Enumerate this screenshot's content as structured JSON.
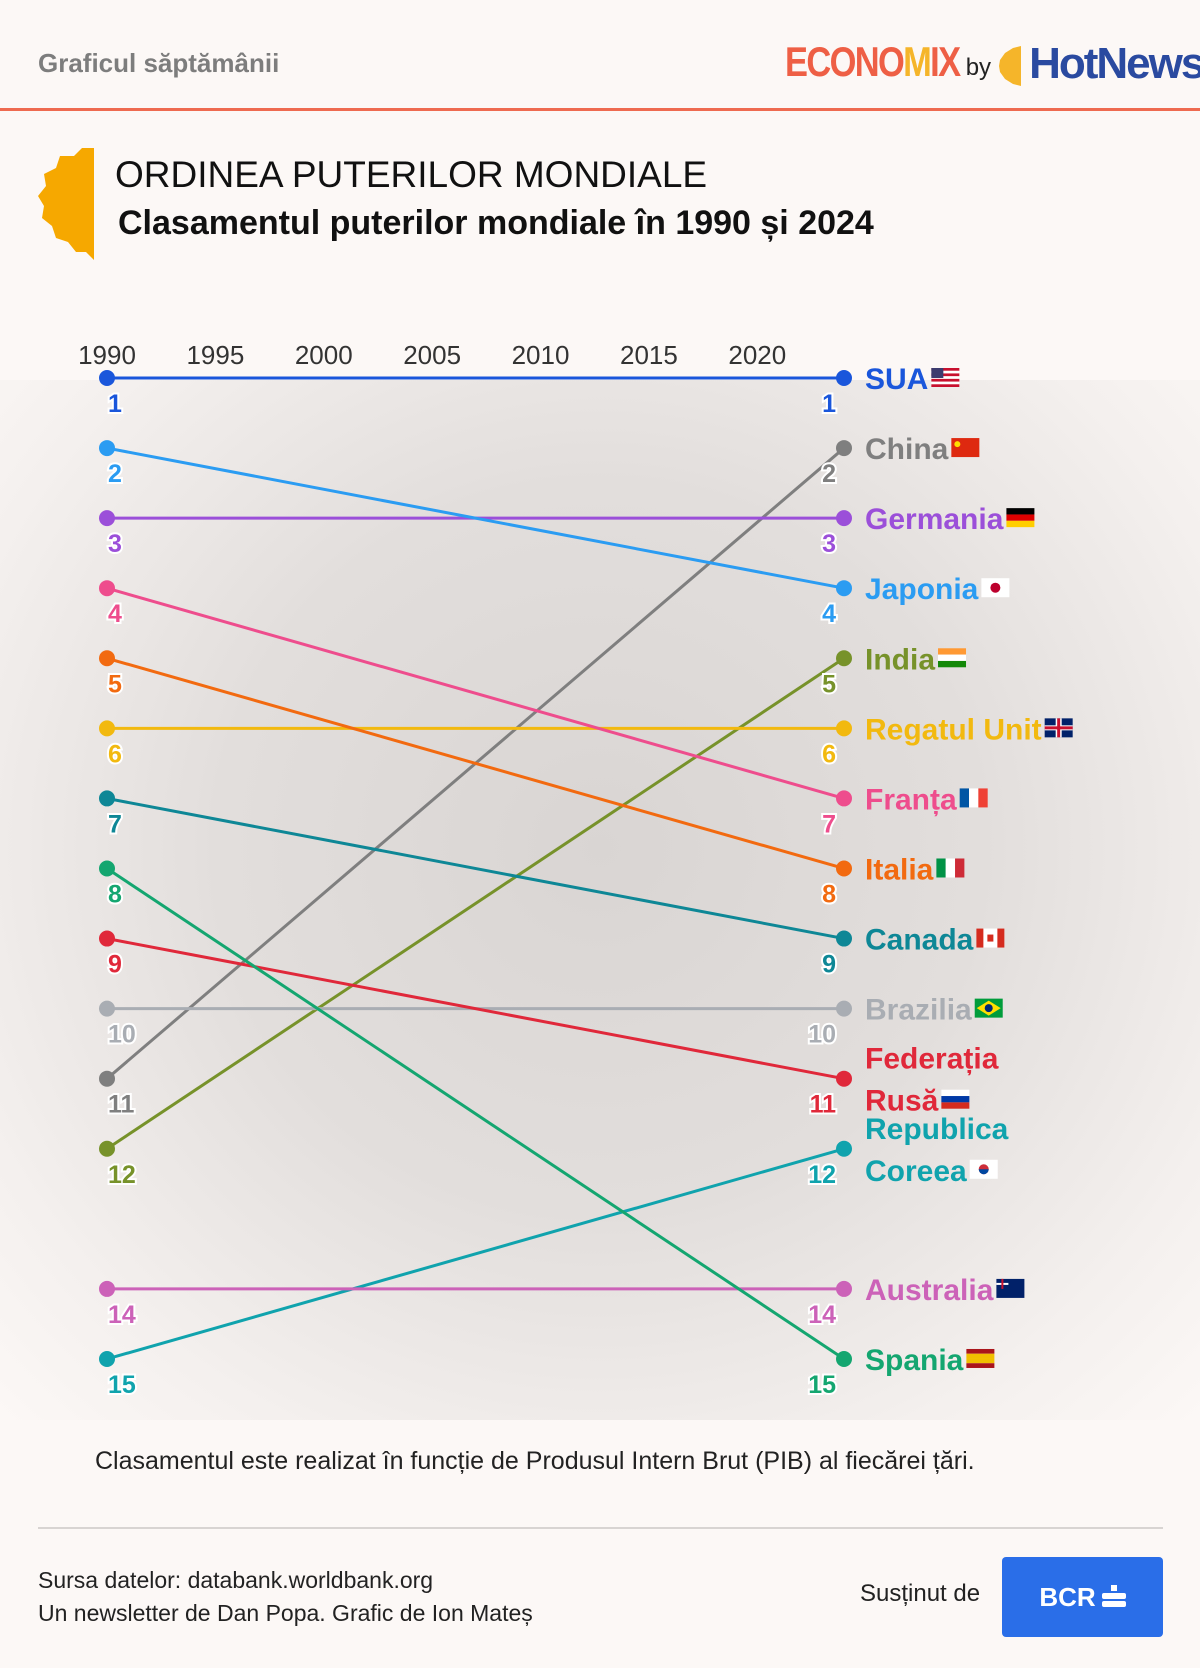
{
  "header": {
    "label": "Graficul săptămânii",
    "logo_text": "EconoMix by HotNews"
  },
  "title": {
    "line1": "ORDINEA PUTERILOR MONDIALE",
    "line2": "Clasamentul puterilor mondiale în 1990 și 2024"
  },
  "chart_data": {
    "type": "slope",
    "x_ticks": [
      "1990",
      "1995",
      "2000",
      "2005",
      "2010",
      "2015",
      "2020"
    ],
    "x_range": [
      1990,
      2024
    ],
    "y_axis": "rank (1 = top)",
    "series": [
      {
        "name": "SUA",
        "name_lines": [
          "SUA"
        ],
        "rank_1990": 1,
        "rank_2024": 1,
        "color": "#1a56db",
        "flag": "us"
      },
      {
        "name": "China",
        "name_lines": [
          "China"
        ],
        "rank_1990": 11,
        "rank_2024": 2,
        "color": "#7f7f7f",
        "flag": "cn"
      },
      {
        "name": "Germania",
        "name_lines": [
          "Germania"
        ],
        "rank_1990": 3,
        "rank_2024": 3,
        "color": "#9b4fd9",
        "flag": "de"
      },
      {
        "name": "Japonia",
        "name_lines": [
          "Japonia"
        ],
        "rank_1990": 2,
        "rank_2024": 4,
        "color": "#2b9cf2",
        "flag": "jp"
      },
      {
        "name": "India",
        "name_lines": [
          "India"
        ],
        "rank_1990": 12,
        "rank_2024": 5,
        "color": "#77922a",
        "flag": "in"
      },
      {
        "name": "Regatul Unit",
        "name_lines": [
          "Regatul Unit"
        ],
        "rank_1990": 6,
        "rank_2024": 6,
        "color": "#f2b90f",
        "flag": "gb"
      },
      {
        "name": "Franța",
        "name_lines": [
          "Franța"
        ],
        "rank_1990": 4,
        "rank_2024": 7,
        "color": "#ee4d8d",
        "flag": "fr"
      },
      {
        "name": "Italia",
        "name_lines": [
          "Italia"
        ],
        "rank_1990": 5,
        "rank_2024": 8,
        "color": "#f26a10",
        "flag": "it"
      },
      {
        "name": "Canada",
        "name_lines": [
          "Canada"
        ],
        "rank_1990": 7,
        "rank_2024": 9,
        "color": "#0e8796",
        "flag": "ca"
      },
      {
        "name": "Brazilia",
        "name_lines": [
          "Brazilia"
        ],
        "rank_1990": 10,
        "rank_2024": 10,
        "color": "#a9adb3",
        "flag": "br"
      },
      {
        "name": "Federația Rusă",
        "name_lines": [
          "Federația",
          "Rusă"
        ],
        "rank_1990": 9,
        "rank_2024": 11,
        "color": "#e0283a",
        "flag": "ru"
      },
      {
        "name": "Republica Coreea",
        "name_lines": [
          "Republica",
          "Coreea"
        ],
        "rank_1990": 15,
        "rank_2024": 12,
        "color": "#10a3ad",
        "flag": "kr"
      },
      {
        "name": "Australia",
        "name_lines": [
          "Australia"
        ],
        "rank_1990": 14,
        "rank_2024": 14,
        "color": "#cc62b8",
        "flag": "au"
      },
      {
        "name": "Spania",
        "name_lines": [
          "Spania"
        ],
        "rank_1990": 8,
        "rank_2024": 15,
        "color": "#14a670",
        "flag": "es"
      }
    ]
  },
  "note": "Clasamentul este realizat în funcție de Produsul Intern Brut (PIB) al fiecărei țări.",
  "footer": {
    "source": "Sursa datelor: databank.worldbank.org",
    "credits": "Un newsletter de Dan Popa. Grafic de Ion Mateș",
    "supported": "Susținut de",
    "sponsor": "BCR"
  }
}
